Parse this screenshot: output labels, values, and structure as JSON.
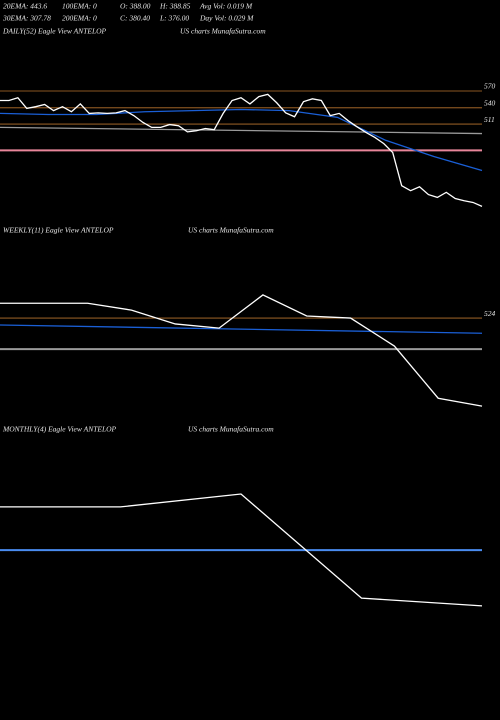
{
  "header": {
    "row1": [
      "20EMA: 443.6",
      "100EMA: 0",
      "O: 388.00",
      "H: 388.85",
      "Avg Vol: 0.019 M"
    ],
    "row2": [
      "30EMA: 307.78",
      "200EMA: 0",
      "C: 380.40",
      "L: 376.00",
      "Day Vol: 0.029 M"
    ]
  },
  "chart_data": [
    {
      "type": "line",
      "title": "DAILY(52) Eagle  View  ANTELOP",
      "watermark": "US charts MunafaSutra.com",
      "ylim": [
        310,
        660
      ],
      "yticks": [
        570,
        540,
        511
      ],
      "tick_color": "#b8732e",
      "levels": [
        {
          "value": 464,
          "color": "#e8869a"
        }
      ],
      "series": [
        {
          "color": "#9a9a9a",
          "values": [
            505,
            494
          ]
        },
        {
          "color": "#1a5fd6",
          "values": [
            530,
            528,
            528,
            533,
            535,
            537,
            535,
            523,
            482,
            453,
            428
          ]
        },
        {
          "color": "#ffffff",
          "values": [
            553,
            553,
            558,
            539,
            542,
            546,
            535,
            542,
            533,
            547,
            530,
            531,
            530,
            531,
            535,
            526,
            514,
            505,
            505,
            510,
            508,
            497,
            499,
            503,
            501,
            530,
            553,
            558,
            547,
            560,
            564,
            549,
            531,
            524,
            551,
            556,
            553,
            526,
            530,
            517,
            506,
            496,
            487,
            476,
            460,
            401,
            392,
            399,
            385,
            380,
            389,
            378,
            374,
            371,
            364
          ]
        }
      ]
    },
    {
      "type": "line",
      "title": "WEEKLY(11) Eagle  View  ANTELOP",
      "watermark": "US charts MunafaSutra.com",
      "ylim": [
        200,
        750
      ],
      "yticks": [
        524
      ],
      "tick_color": "#b8732e",
      "levels": [
        {
          "value": 434,
          "color": "#9a9a9a"
        }
      ],
      "series": [
        {
          "color": "#1a5fd6",
          "values": [
            504,
            480
          ]
        },
        {
          "color": "#ffffff",
          "values": [
            567,
            567,
            567,
            547,
            507,
            495,
            591,
            530,
            524,
            443,
            292,
            269
          ]
        }
      ]
    },
    {
      "type": "line",
      "title": "MONTHLY(4) Eagle  View  ANTELOP",
      "watermark": "US charts MunafaSutra.com",
      "ylim": [
        200,
        800
      ],
      "yticks": [],
      "tick_color": "#b8732e",
      "levels": [
        {
          "value": 433,
          "color": "#4a8cf0"
        }
      ],
      "series": [
        {
          "color": "#ffffff",
          "values": [
            577,
            577,
            620,
            273,
            247
          ]
        }
      ]
    }
  ]
}
